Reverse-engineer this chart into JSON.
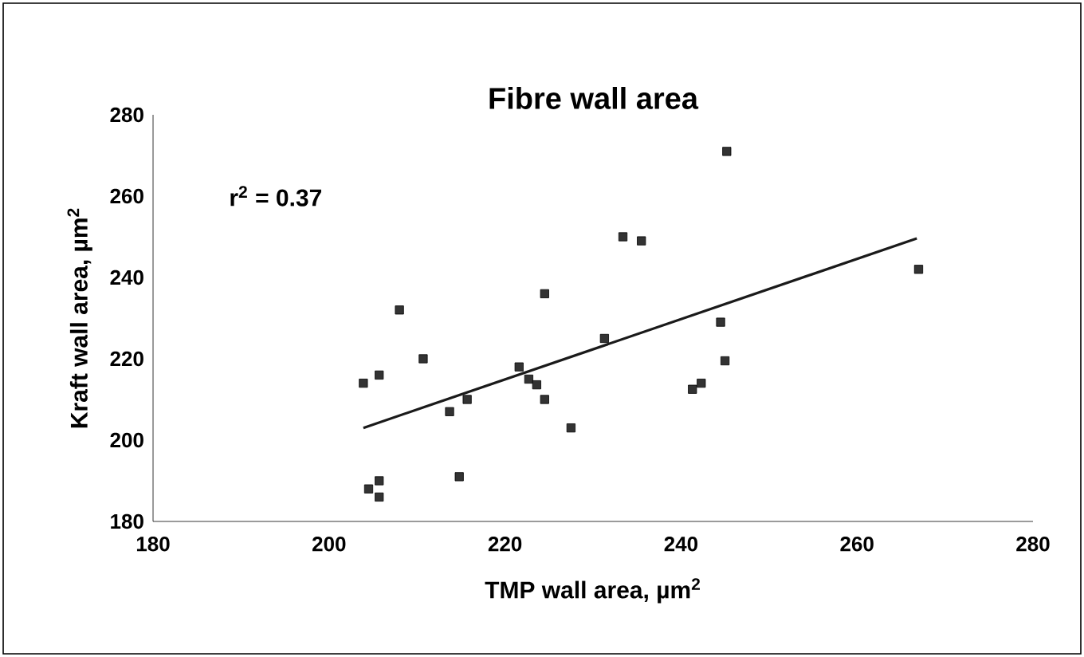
{
  "chart_data": {
    "type": "scatter",
    "title": "Fibre wall area",
    "xlabel": "TMP wall area, µm$^{2}$",
    "ylabel": "Kraft wall area, µm$^{2}$",
    "annotations": [
      "r$^{2}$ = 0.37"
    ],
    "xlim": [
      180,
      280
    ],
    "xticks": [
      180,
      200,
      220,
      240,
      260,
      280
    ],
    "ylim": [
      180,
      280
    ],
    "yticks": [
      180,
      200,
      220,
      240,
      260,
      280
    ],
    "marker": "square",
    "grid": false,
    "series": [
      {
        "color": "#333333",
        "x": [
          203.9,
          205.7,
          208,
          210.7,
          213.7,
          215.7,
          214.8,
          221.6,
          222.7,
          223.6,
          224.5,
          224.5,
          227.5,
          231.3,
          233.4,
          235.5,
          241.3,
          242.3,
          244.5,
          245,
          245.2,
          267,
          204.5,
          205.7,
          205.7
        ],
        "values": [
          214,
          216,
          232,
          220,
          207,
          210,
          191,
          218,
          215,
          213.6,
          210,
          236,
          203,
          225,
          250,
          249,
          212.5,
          214,
          229,
          219.5,
          271,
          242,
          188,
          190,
          186
        ]
      },
      {
        "type": "line",
        "color": "#1a1a1a",
        "x": [
          203.9,
          266.8
        ],
        "values": [
          203,
          249.6
        ],
        "marker": "none"
      }
    ]
  }
}
